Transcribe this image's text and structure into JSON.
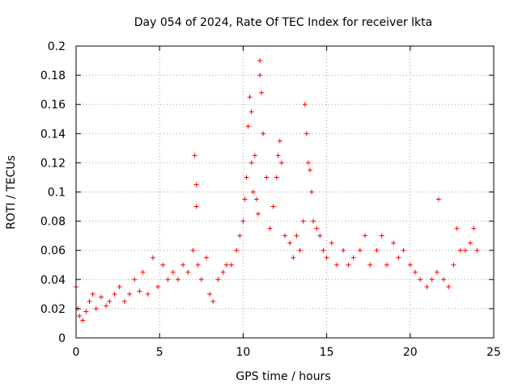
{
  "chart_data": {
    "type": "scatter",
    "title": "Day 054 of 2024, Rate Of TEC Index for receiver lkta",
    "xlabel": "GPS time / hours",
    "ylabel": "ROTI / TECUs",
    "xlim": [
      0,
      25
    ],
    "ylim": [
      0,
      0.2
    ],
    "grid": true,
    "xticks": [
      0,
      5,
      10,
      15,
      20,
      25
    ],
    "xtick_labels": [
      "0",
      "5",
      "10",
      "15",
      "20",
      "25"
    ],
    "yticks": [
      0,
      0.02,
      0.04,
      0.06,
      0.08,
      0.1,
      0.12,
      0.14,
      0.16,
      0.18,
      0.2
    ],
    "ytick_labels": [
      "0",
      "0.02",
      "0.04",
      "0.06",
      "0.08",
      "0.1",
      "0.12",
      "0.14",
      "0.16",
      "0.18",
      "0.2"
    ],
    "marker": "+",
    "color": "#ff0000",
    "series": [
      {
        "name": "ROTI",
        "x": [
          0.0,
          0.1,
          0.2,
          0.4,
          0.6,
          0.8,
          1.0,
          1.2,
          1.5,
          1.8,
          2.0,
          2.3,
          2.6,
          2.9,
          3.2,
          3.5,
          3.8,
          4.0,
          4.3,
          4.6,
          4.9,
          5.2,
          5.5,
          5.8,
          6.1,
          6.4,
          6.7,
          7.0,
          7.1,
          7.2,
          7.2,
          7.3,
          7.5,
          7.8,
          8.0,
          8.2,
          8.5,
          8.8,
          9.0,
          9.3,
          9.6,
          9.8,
          10.0,
          10.1,
          10.2,
          10.3,
          10.4,
          10.5,
          10.5,
          10.6,
          10.7,
          10.8,
          10.9,
          11.0,
          11.0,
          11.1,
          11.2,
          11.4,
          11.6,
          11.8,
          12.0,
          12.1,
          12.2,
          12.3,
          12.5,
          12.8,
          13.0,
          13.2,
          13.4,
          13.6,
          13.7,
          13.8,
          13.9,
          14.0,
          14.1,
          14.2,
          14.4,
          14.6,
          14.8,
          15.0,
          15.3,
          15.6,
          16.0,
          16.3,
          16.6,
          17.0,
          17.3,
          17.6,
          18.0,
          18.3,
          18.6,
          19.0,
          19.3,
          19.6,
          20.0,
          20.3,
          20.6,
          21.0,
          21.3,
          21.6,
          21.7,
          22.0,
          22.3,
          22.6,
          22.8,
          23.0,
          23.3,
          23.6,
          23.8,
          24.0
        ],
        "y": [
          0.035,
          0.02,
          0.015,
          0.012,
          0.018,
          0.025,
          0.03,
          0.02,
          0.028,
          0.022,
          0.025,
          0.03,
          0.035,
          0.025,
          0.03,
          0.04,
          0.032,
          0.045,
          0.03,
          0.055,
          0.035,
          0.05,
          0.04,
          0.045,
          0.04,
          0.05,
          0.045,
          0.06,
          0.125,
          0.105,
          0.09,
          0.05,
          0.04,
          0.055,
          0.03,
          0.025,
          0.04,
          0.045,
          0.05,
          0.05,
          0.06,
          0.07,
          0.08,
          0.095,
          0.11,
          0.145,
          0.165,
          0.155,
          0.12,
          0.1,
          0.125,
          0.095,
          0.085,
          0.19,
          0.18,
          0.168,
          0.14,
          0.11,
          0.075,
          0.09,
          0.11,
          0.125,
          0.135,
          0.12,
          0.07,
          0.065,
          0.055,
          0.07,
          0.06,
          0.08,
          0.16,
          0.14,
          0.12,
          0.115,
          0.1,
          0.08,
          0.075,
          0.07,
          0.06,
          0.055,
          0.065,
          0.05,
          0.06,
          0.05,
          0.055,
          0.06,
          0.07,
          0.05,
          0.06,
          0.07,
          0.05,
          0.065,
          0.055,
          0.06,
          0.05,
          0.045,
          0.04,
          0.035,
          0.04,
          0.045,
          0.095,
          0.04,
          0.035,
          0.05,
          0.075,
          0.06,
          0.06,
          0.065,
          0.075,
          0.06
        ]
      }
    ]
  }
}
